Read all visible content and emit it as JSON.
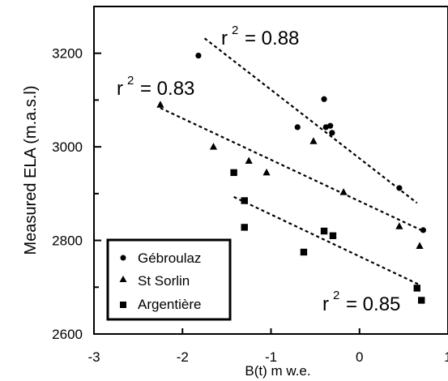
{
  "chart_data": {
    "type": "scatter",
    "xlabel": "B(t) m w.e.",
    "ylabel": "Measured ELA (m.a.s.l)",
    "xlim": [
      -3,
      1
    ],
    "ylim": [
      2600,
      3300
    ],
    "x_ticks": [
      -3,
      -2,
      -1,
      0,
      1
    ],
    "x_tick_labels": [
      "-3",
      "-2",
      "-1",
      "0",
      "1"
    ],
    "y_ticks": [
      2600,
      2800,
      3000,
      3200
    ],
    "y_tick_labels": [
      "2600",
      "2800",
      "3000",
      "3200"
    ],
    "grid": false,
    "legend_position": "bottom-left",
    "colors": {
      "points": "#000000",
      "trend": "#000000",
      "frame": "#000000"
    },
    "series": [
      {
        "name": "Gébroulaz",
        "marker": "circle",
        "points": [
          [
            -1.82,
            3195
          ],
          [
            -0.7,
            3042
          ],
          [
            -0.4,
            3102
          ],
          [
            -0.38,
            3042
          ],
          [
            -0.33,
            3045
          ],
          [
            -0.31,
            3030
          ],
          [
            0.45,
            2912
          ],
          [
            0.72,
            2822
          ]
        ],
        "trendline": [
          [
            -1.75,
            3232
          ],
          [
            0.65,
            2880
          ]
        ],
        "r2_label": "r",
        "r2_exp": "2",
        "r2_value": "= 0.88"
      },
      {
        "name": "St Sorlin",
        "marker": "triangle",
        "points": [
          [
            -2.25,
            3090
          ],
          [
            -1.65,
            3000
          ],
          [
            -1.25,
            2970
          ],
          [
            -1.05,
            2945
          ],
          [
            -0.52,
            3012
          ],
          [
            -0.18,
            2903
          ],
          [
            0.45,
            2830
          ],
          [
            0.68,
            2788
          ]
        ],
        "trendline": [
          [
            -2.25,
            3083
          ],
          [
            0.72,
            2820
          ]
        ],
        "r2_label": "r",
        "r2_exp": "2",
        "r2_value": "= 0.83"
      },
      {
        "name": "Argentière",
        "marker": "square",
        "points": [
          [
            -1.42,
            2945
          ],
          [
            -1.3,
            2885
          ],
          [
            -1.3,
            2828
          ],
          [
            -0.63,
            2775
          ],
          [
            -0.4,
            2820
          ],
          [
            -0.3,
            2810
          ],
          [
            0.65,
            2698
          ],
          [
            0.7,
            2672
          ]
        ],
        "trendline": [
          [
            -1.42,
            2893
          ],
          [
            0.68,
            2705
          ]
        ],
        "r2_label": "r",
        "r2_exp": "2",
        "r2_value": "= 0.85"
      }
    ]
  }
}
